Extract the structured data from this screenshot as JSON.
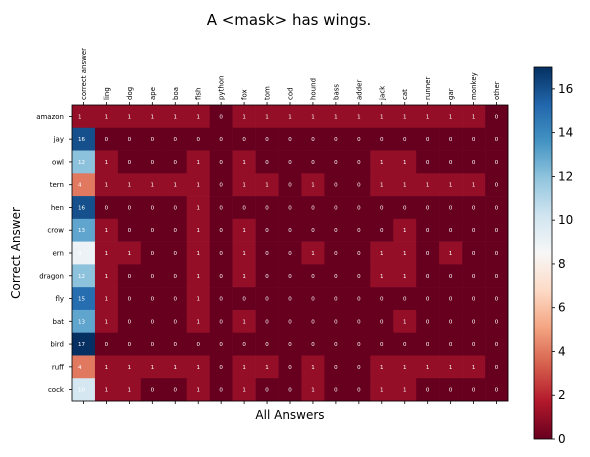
{
  "chart_data": {
    "type": "heatmap",
    "title": "A <mask> has wings.",
    "xlabel": "All Answers",
    "ylabel": "Correct Answer",
    "columns": [
      "correct answer",
      "ling",
      "dog",
      "ape",
      "boa",
      "fish",
      "python",
      "fox",
      "tom",
      "cod",
      "hound",
      "bass",
      "adder",
      "jack",
      "cat",
      "runner",
      "gar",
      "monkey",
      "other"
    ],
    "rows": [
      "amazon",
      "jay",
      "owl",
      "tern",
      "hen",
      "crow",
      "ern",
      "dragon",
      "fly",
      "bat",
      "bird",
      "ruff",
      "cock"
    ],
    "values": [
      [
        1,
        1,
        1,
        1,
        1,
        1,
        0,
        1,
        1,
        1,
        1,
        1,
        1,
        1,
        1,
        1,
        1,
        1,
        0
      ],
      [
        16,
        0,
        0,
        0,
        0,
        0,
        0,
        0,
        0,
        0,
        0,
        0,
        0,
        0,
        0,
        0,
        0,
        0,
        0
      ],
      [
        12,
        1,
        0,
        0,
        0,
        1,
        0,
        1,
        0,
        0,
        0,
        0,
        0,
        1,
        1,
        0,
        0,
        0,
        0
      ],
      [
        4,
        1,
        1,
        1,
        1,
        1,
        0,
        1,
        1,
        0,
        1,
        0,
        0,
        1,
        1,
        1,
        1,
        1,
        0
      ],
      [
        16,
        0,
        0,
        0,
        0,
        1,
        0,
        0,
        0,
        0,
        0,
        0,
        0,
        0,
        0,
        0,
        0,
        0,
        0
      ],
      [
        13,
        1,
        0,
        0,
        0,
        1,
        0,
        1,
        0,
        0,
        0,
        0,
        0,
        0,
        1,
        0,
        0,
        0,
        0
      ],
      [
        9,
        1,
        1,
        0,
        0,
        1,
        0,
        1,
        0,
        0,
        1,
        0,
        0,
        1,
        1,
        0,
        1,
        0,
        0
      ],
      [
        12,
        1,
        0,
        0,
        0,
        1,
        0,
        1,
        0,
        0,
        0,
        0,
        0,
        1,
        1,
        0,
        0,
        0,
        0
      ],
      [
        15,
        1,
        0,
        0,
        0,
        1,
        0,
        0,
        0,
        0,
        0,
        0,
        0,
        0,
        0,
        0,
        0,
        0,
        0
      ],
      [
        13,
        1,
        0,
        0,
        0,
        1,
        0,
        1,
        0,
        0,
        0,
        0,
        0,
        0,
        1,
        0,
        0,
        0,
        0
      ],
      [
        17,
        0,
        0,
        0,
        0,
        0,
        0,
        0,
        0,
        0,
        0,
        0,
        0,
        0,
        0,
        0,
        0,
        0,
        0
      ],
      [
        4,
        1,
        1,
        1,
        1,
        1,
        0,
        1,
        1,
        0,
        1,
        0,
        0,
        1,
        1,
        1,
        1,
        1,
        0
      ],
      [
        10,
        1,
        1,
        0,
        0,
        1,
        0,
        1,
        0,
        0,
        1,
        0,
        0,
        1,
        1,
        0,
        0,
        0,
        0
      ]
    ],
    "colorbar": {
      "min": 0,
      "max": 17,
      "ticks": [
        0,
        2,
        4,
        6,
        8,
        10,
        12,
        14,
        16
      ],
      "colormap": "RdBu"
    },
    "grid": false
  }
}
